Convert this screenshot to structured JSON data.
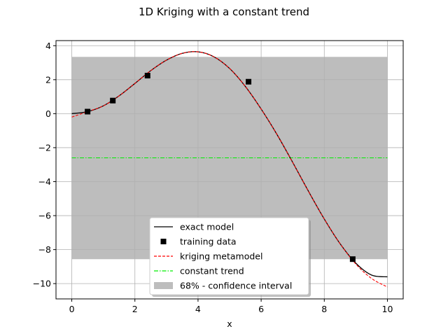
{
  "chart_data": {
    "type": "line",
    "title": "1D Kriging with a constant trend",
    "xlabel": "x",
    "ylabel": "",
    "xlim": [
      -0.5,
      10.5
    ],
    "ylim": [
      -10.9,
      4.3
    ],
    "xticks": [
      0,
      2,
      4,
      6,
      8,
      10
    ],
    "yticks": [
      -10,
      -8,
      -6,
      -4,
      -2,
      0,
      2,
      4
    ],
    "grid": true,
    "legend_position": "lower center",
    "series": [
      {
        "name": "exact model",
        "kind": "line",
        "color": "#000000",
        "x": [
          0.0,
          0.5,
          1.0,
          1.5,
          2.0,
          2.5,
          3.0,
          3.5,
          4.0,
          4.5,
          5.0,
          5.5,
          6.0,
          6.5,
          7.0,
          7.5,
          8.0,
          8.5,
          9.0,
          9.5,
          10.0
        ],
        "y": [
          0.0,
          0.12,
          0.46,
          1.05,
          1.78,
          2.53,
          3.15,
          3.55,
          3.64,
          3.35,
          2.66,
          1.6,
          0.27,
          -1.22,
          -2.87,
          -4.57,
          -6.2,
          -7.65,
          -8.8,
          -9.5,
          -9.6
        ]
      },
      {
        "name": "training data",
        "kind": "scatter",
        "color": "#000000",
        "x": [
          0.5,
          1.3,
          2.4,
          5.6,
          8.9
        ],
        "y": [
          0.12,
          0.77,
          2.24,
          1.88,
          -8.56
        ]
      },
      {
        "name": "kriging metamodel",
        "kind": "line",
        "color": "#ff0000",
        "x": [
          0.0,
          0.5,
          1.0,
          1.5,
          2.0,
          2.5,
          3.0,
          3.5,
          4.0,
          4.5,
          5.0,
          5.5,
          6.0,
          6.5,
          7.0,
          7.5,
          8.0,
          8.5,
          9.0,
          9.5,
          10.0
        ],
        "y": [
          -0.2,
          0.12,
          0.46,
          1.05,
          1.78,
          2.53,
          3.15,
          3.55,
          3.64,
          3.35,
          2.66,
          1.6,
          0.27,
          -1.22,
          -2.87,
          -4.57,
          -6.2,
          -7.65,
          -8.85,
          -9.7,
          -10.2
        ]
      },
      {
        "name": "constant trend",
        "kind": "line",
        "color": "#00ee00",
        "x": [
          0.0,
          10.0
        ],
        "y": [
          -2.6,
          -2.6
        ]
      },
      {
        "name": "68% - confidence interval",
        "kind": "band",
        "color": "#bdbdbd",
        "x": [
          0.0,
          10.0
        ],
        "lower": [
          -8.56,
          -8.56
        ],
        "upper": [
          3.34,
          3.34
        ]
      }
    ]
  }
}
